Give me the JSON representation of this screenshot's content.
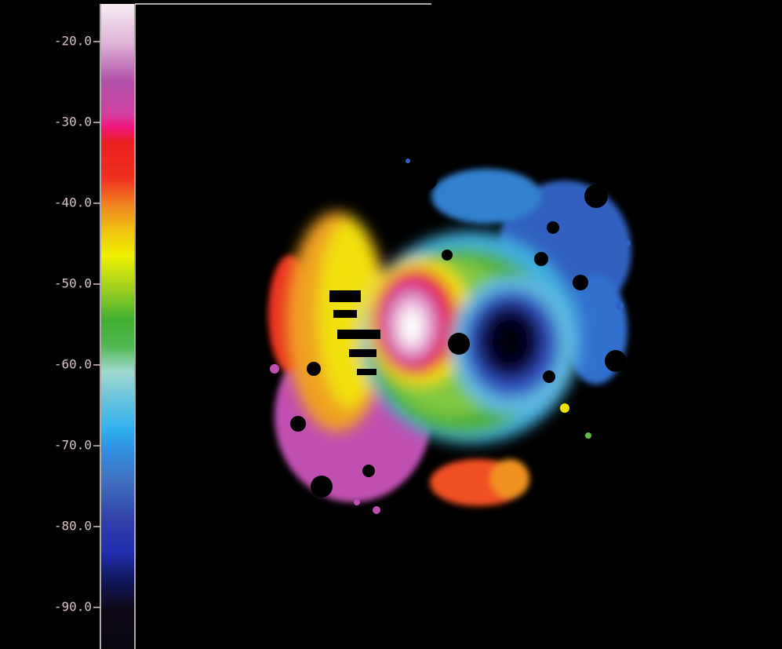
{
  "colorbar": {
    "ylim": [
      -15,
      -95
    ],
    "ticks": [
      {
        "value": -20,
        "label": "-20.0"
      },
      {
        "value": -30,
        "label": "-30.0"
      },
      {
        "value": -40,
        "label": "-40.0"
      },
      {
        "value": -50,
        "label": "-50.0"
      },
      {
        "value": -60,
        "label": "-60.0"
      },
      {
        "value": -70,
        "label": "-70.0"
      },
      {
        "value": -80,
        "label": "-80.0"
      },
      {
        "value": -90,
        "label": "-90.0"
      }
    ]
  }
}
